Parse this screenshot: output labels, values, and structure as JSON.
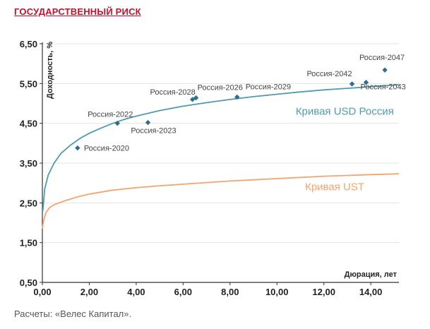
{
  "page": {
    "title": "ГОСУДАРСТВЕННЫЙ РИСК",
    "source": "Расчеты: «Велес Капитал»."
  },
  "colors": {
    "title": "#c8102e",
    "russia_curve": "#4f9bb0",
    "ust_curve": "#f5a46d",
    "points": "#2d6f8a",
    "grid": "#e3e3e3",
    "axis": "#333333"
  },
  "chart_data": {
    "type": "scatter",
    "title": "ГОСУДАРСТВЕННЫЙ РИСК",
    "xlabel": "Дюрация, лет",
    "ylabel": "Доходность, %",
    "xlim": [
      0,
      15.2
    ],
    "ylim": [
      0.5,
      6.5
    ],
    "x_ticks": [
      "0,00",
      "2,00",
      "4,00",
      "6,00",
      "8,00",
      "10,00",
      "12,00",
      "14,00"
    ],
    "x_tick_values": [
      0,
      2,
      4,
      6,
      8,
      10,
      12,
      14
    ],
    "y_ticks": [
      "0,50",
      "1,50",
      "2,50",
      "3,50",
      "4,50",
      "5,50",
      "6,50"
    ],
    "y_tick_values": [
      0.5,
      1.5,
      2.5,
      3.5,
      4.5,
      5.5,
      6.5
    ],
    "grid": "horizontal",
    "series": [
      {
        "name": "Кривая USD Россия",
        "kind": "line",
        "x": [
          0.02,
          0.1,
          0.25,
          0.5,
          0.8,
          1.2,
          1.6,
          2.0,
          2.5,
          3.0,
          3.5,
          4.0,
          5.0,
          6.0,
          7.0,
          8.0,
          9.0,
          10.0,
          11.0,
          12.0,
          13.0,
          14.0,
          15.2
        ],
        "y": [
          2.3,
          2.85,
          3.2,
          3.5,
          3.75,
          3.95,
          4.12,
          4.25,
          4.38,
          4.5,
          4.6,
          4.68,
          4.82,
          4.93,
          5.02,
          5.1,
          5.17,
          5.23,
          5.29,
          5.34,
          5.38,
          5.42,
          5.47
        ]
      },
      {
        "name": "Кривая UST",
        "kind": "line",
        "x": [
          0.0,
          0.05,
          0.15,
          0.3,
          0.5,
          0.8,
          1.0,
          1.5,
          2.0,
          3.0,
          4.0,
          5.0,
          6.0,
          7.0,
          8.0,
          9.0,
          10.0,
          11.0,
          12.0,
          13.0,
          14.0,
          15.2
        ],
        "y": [
          1.85,
          2.05,
          2.25,
          2.38,
          2.45,
          2.52,
          2.56,
          2.65,
          2.72,
          2.82,
          2.88,
          2.93,
          2.97,
          3.01,
          3.05,
          3.08,
          3.11,
          3.14,
          3.17,
          3.19,
          3.21,
          3.23
        ]
      },
      {
        "name": "Россия",
        "kind": "points",
        "points": [
          {
            "label": "Россия-2020",
            "x": 1.5,
            "y": 3.88
          },
          {
            "label": "Россия-2022",
            "x": 3.2,
            "y": 4.5
          },
          {
            "label": "Россия-2023",
            "x": 4.5,
            "y": 4.52
          },
          {
            "label": "Россия-2028",
            "x": 6.4,
            "y": 5.1
          },
          {
            "label": "Россия-2026",
            "x": 6.55,
            "y": 5.14
          },
          {
            "label": "Россия-2029",
            "x": 8.3,
            "y": 5.16
          },
          {
            "label": "Россия-2042",
            "x": 13.2,
            "y": 5.49
          },
          {
            "label": "Россия-2043",
            "x": 13.8,
            "y": 5.53
          },
          {
            "label": "Россия-2047",
            "x": 14.6,
            "y": 5.84
          }
        ]
      }
    ],
    "annotations": [
      "Кривая USD Россия",
      "Кривая UST"
    ]
  }
}
